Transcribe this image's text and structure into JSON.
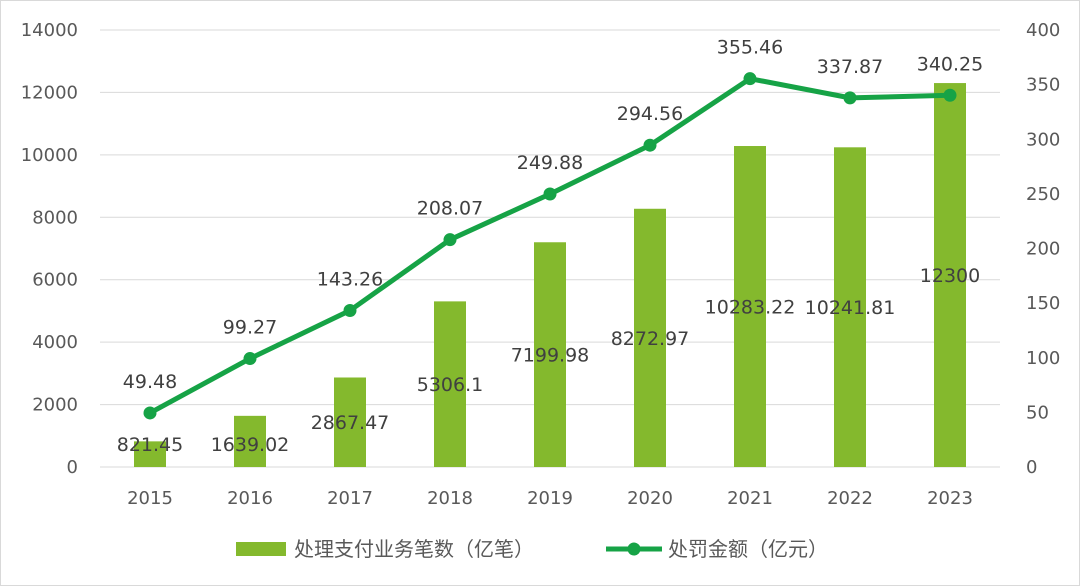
{
  "chart_data": {
    "type": "bar+line",
    "categories": [
      "2015",
      "2016",
      "2017",
      "2018",
      "2019",
      "2020",
      "2021",
      "2022",
      "2023"
    ],
    "series": [
      {
        "name": "处理支付业务笔数（亿笔）",
        "type": "bar",
        "axis": "left",
        "color": "#84b92d",
        "values": [
          821.45,
          1639.02,
          2867.47,
          5306.1,
          7199.98,
          8272.97,
          10283.22,
          10241.81,
          12300
        ],
        "labels": [
          "821.45",
          "1639.02",
          "2867.47",
          "5306.1",
          "7199.98",
          "8272.97",
          "10283.22",
          "10241.81",
          "12300"
        ]
      },
      {
        "name": "处罚金额（亿元）",
        "type": "line",
        "axis": "right",
        "color": "#16a346",
        "values": [
          49.48,
          99.27,
          143.26,
          208.07,
          249.88,
          294.56,
          355.46,
          337.87,
          340.25
        ],
        "labels": [
          "49.48",
          "99.27",
          "143.26",
          "208.07",
          "249.88",
          "294.56",
          "355.46",
          "337.87",
          "340.25"
        ]
      }
    ],
    "y_left": {
      "min": 0,
      "max": 14000,
      "ticks": [
        0,
        2000,
        4000,
        6000,
        8000,
        10000,
        12000,
        14000
      ]
    },
    "y_right": {
      "min": 0,
      "max": 400,
      "ticks": [
        0,
        50,
        100,
        150,
        200,
        250,
        300,
        350,
        400
      ]
    },
    "grid": true,
    "legend": "bottom"
  }
}
